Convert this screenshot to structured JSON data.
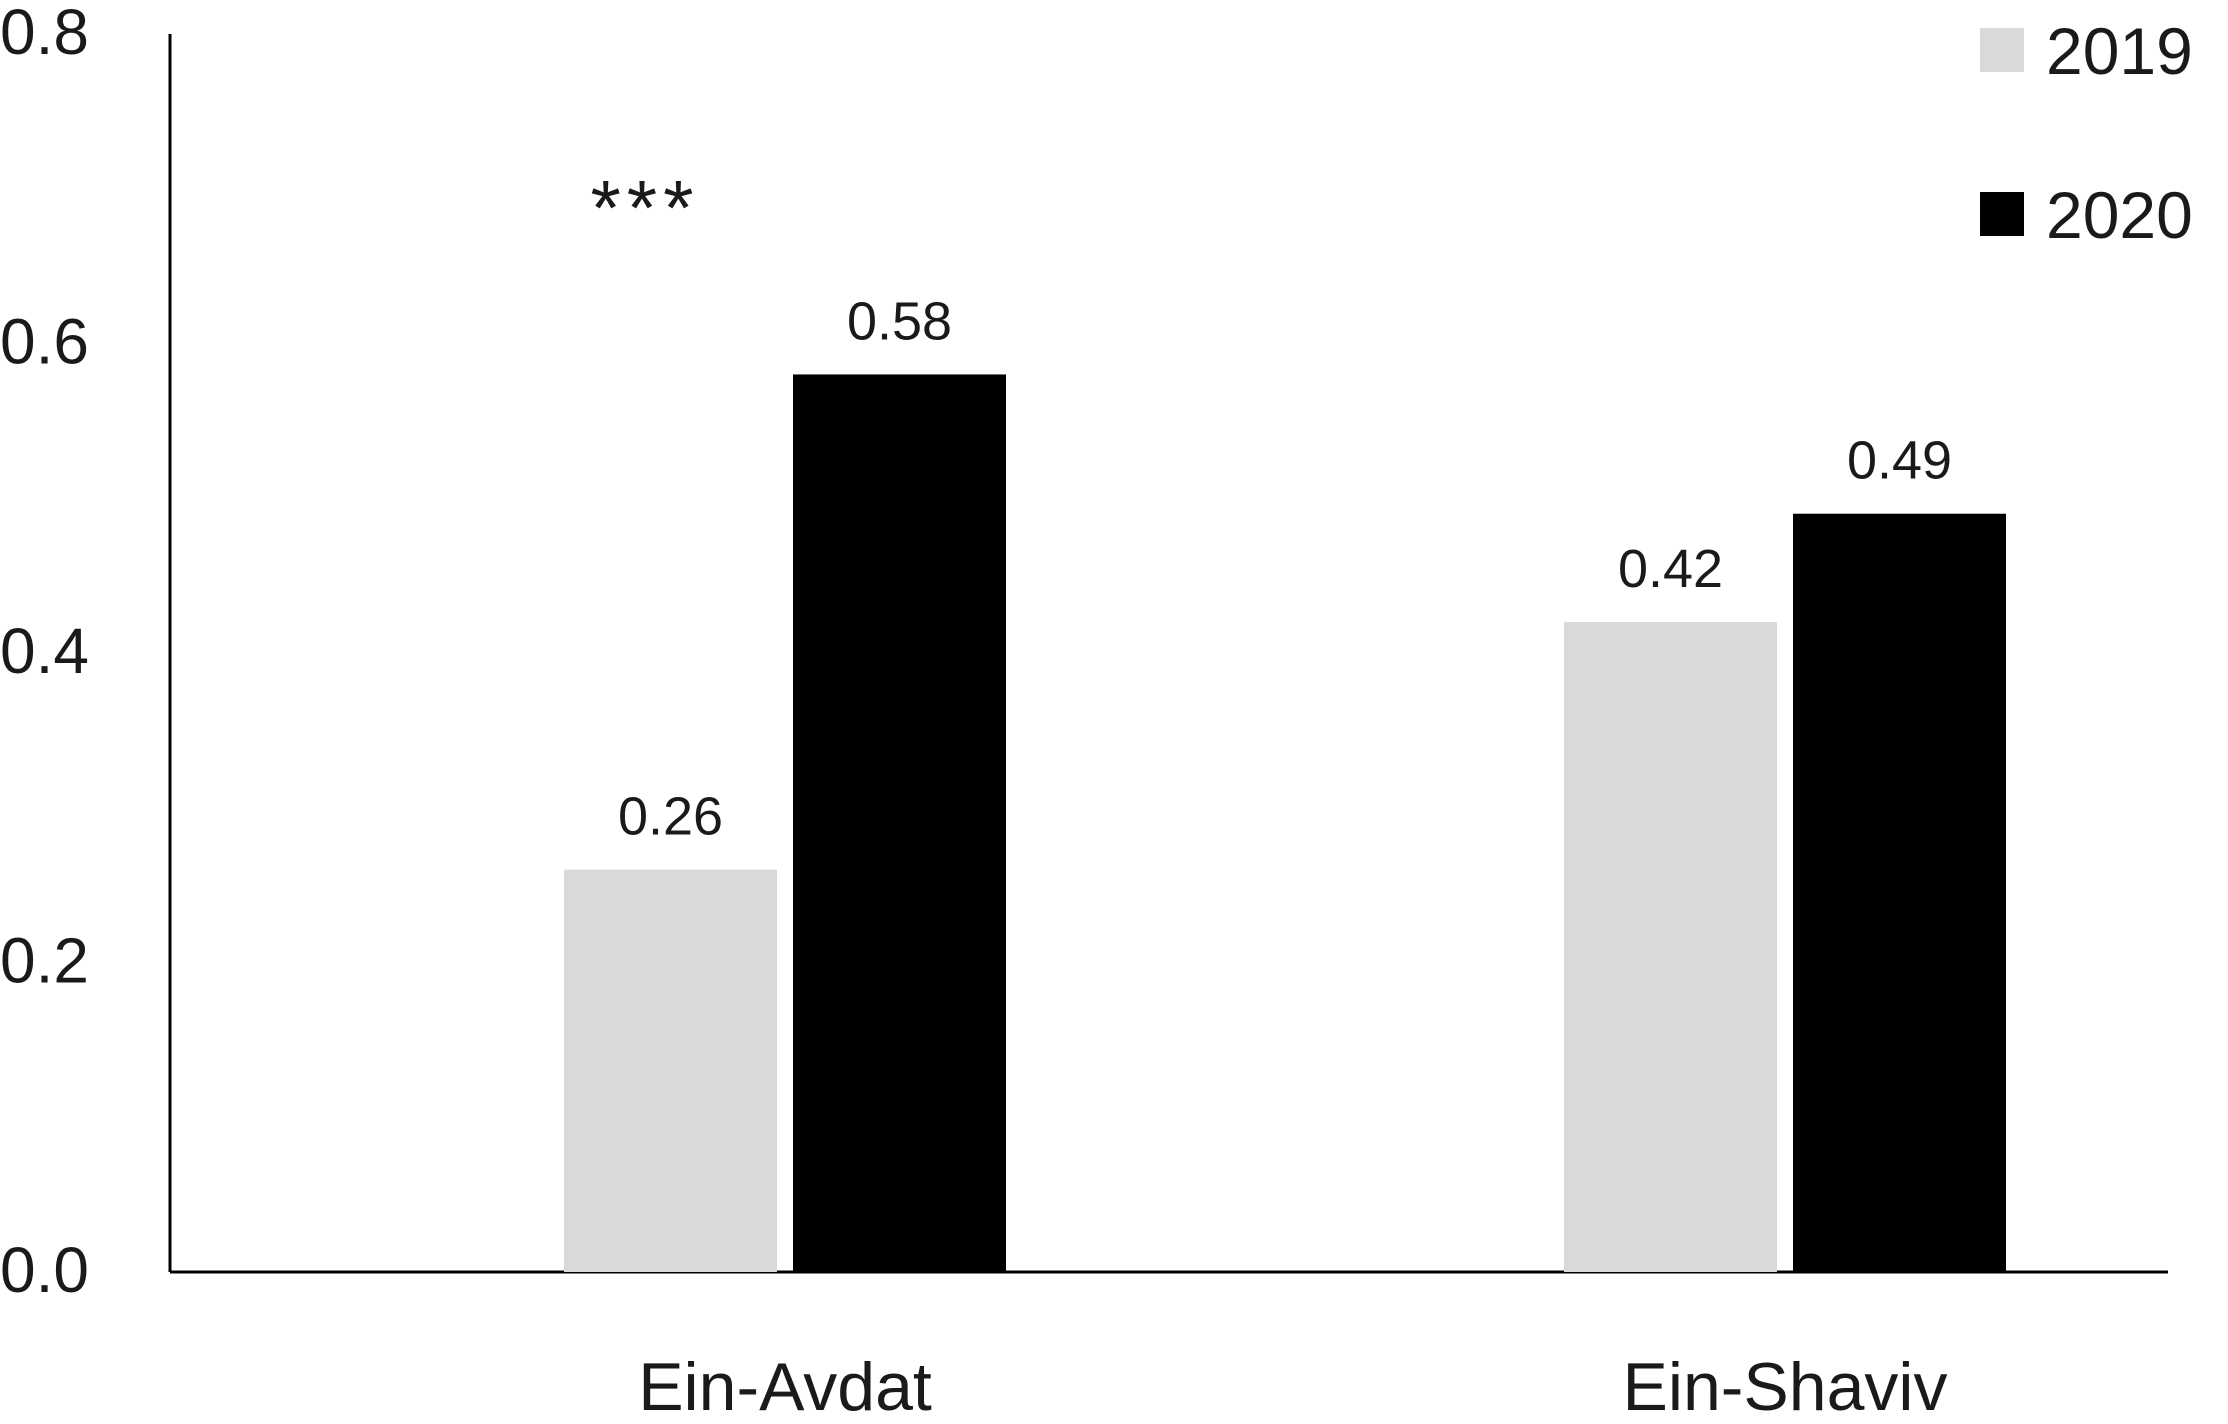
{
  "chart_data": {
    "type": "bar",
    "title": "",
    "xlabel": "",
    "ylabel": "",
    "categories": [
      "Ein-Avdat",
      "Ein-Shaviv"
    ],
    "series": [
      {
        "name": "2019",
        "values": [
          0.26,
          0.42
        ],
        "color": "#d9d9d9",
        "labels": [
          "0.26",
          "0.42"
        ]
      },
      {
        "name": "2020",
        "values": [
          0.58,
          0.49
        ],
        "color": "#000000",
        "labels": [
          "0.58",
          "0.49"
        ]
      }
    ],
    "ylim": [
      0,
      0.8
    ],
    "yticks": [
      "0.0",
      "0.2",
      "0.4",
      "0.6",
      "0.8"
    ],
    "grid": false,
    "legend_position": "top-right",
    "annotations": [
      {
        "category": "Ein-Avdat",
        "text": "***"
      }
    ]
  }
}
